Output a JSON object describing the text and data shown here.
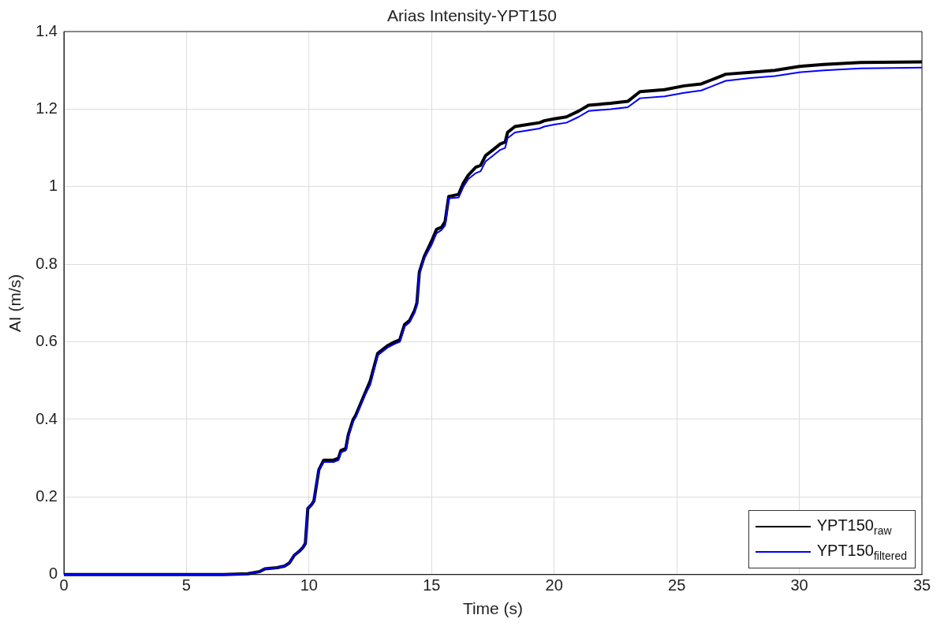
{
  "chart_data": {
    "type": "line",
    "title": "Arias Intensity-YPT150",
    "xlabel": "Time (s)",
    "ylabel": "AI (m/s)",
    "xlim": [
      0,
      35
    ],
    "xticks": [
      0,
      5,
      10,
      15,
      20,
      25,
      30,
      35
    ],
    "ylim": [
      0,
      1.4
    ],
    "yticks": [
      0,
      0.2,
      0.4,
      0.6,
      0.8,
      1,
      1.2,
      1.4
    ],
    "grid": true,
    "legend": "bottom right",
    "marker": "none",
    "line_style": "solid",
    "series": [
      {
        "name": "YPT150$_{raw}$",
        "color": "#000000",
        "x": [
          0,
          6.5,
          7.5,
          8,
          8.2,
          8.7,
          9,
          9.2,
          9.4,
          9.6,
          9.75,
          9.85,
          9.95,
          10.1,
          10.2,
          10.4,
          10.6,
          11,
          11.2,
          11.3,
          11.5,
          11.6,
          11.8,
          11.9,
          12.1,
          12.3,
          12.5,
          12.8,
          13,
          13.2,
          13.5,
          13.7,
          13.9,
          14.1,
          14.3,
          14.4,
          14.5,
          14.7,
          15,
          15.2,
          15.4,
          15.55,
          15.7,
          16.1,
          16.3,
          16.5,
          16.8,
          17,
          17.2,
          17.5,
          17.8,
          18,
          18.1,
          18.4,
          18.9,
          19.4,
          19.6,
          20,
          20.5,
          21,
          21.4,
          22.3,
          23,
          23.5,
          24.5,
          25.3,
          26,
          26.4,
          26.6,
          27,
          28,
          29,
          30,
          31,
          32.5,
          35
        ],
        "values": [
          0,
          0,
          0.002,
          0.008,
          0.015,
          0.018,
          0.022,
          0.03,
          0.05,
          0.06,
          0.07,
          0.08,
          0.17,
          0.18,
          0.19,
          0.27,
          0.295,
          0.295,
          0.3,
          0.32,
          0.325,
          0.36,
          0.4,
          0.41,
          0.44,
          0.47,
          0.5,
          0.57,
          0.58,
          0.59,
          0.6,
          0.605,
          0.645,
          0.655,
          0.68,
          0.7,
          0.78,
          0.82,
          0.86,
          0.89,
          0.895,
          0.91,
          0.975,
          0.98,
          1.01,
          1.03,
          1.05,
          1.055,
          1.08,
          1.095,
          1.11,
          1.115,
          1.14,
          1.155,
          1.16,
          1.165,
          1.17,
          1.175,
          1.18,
          1.195,
          1.21,
          1.215,
          1.22,
          1.245,
          1.25,
          1.26,
          1.265,
          1.275,
          1.28,
          1.29,
          1.295,
          1.3,
          1.31,
          1.315,
          1.32,
          1.322
        ]
      },
      {
        "name": "YPT150$_{filtered}$",
        "color": "#0000ff",
        "x": [
          0,
          6.5,
          7.5,
          8,
          8.2,
          8.7,
          9,
          9.2,
          9.4,
          9.6,
          9.75,
          9.85,
          9.95,
          10.1,
          10.2,
          10.4,
          10.6,
          11,
          11.2,
          11.3,
          11.5,
          11.6,
          11.8,
          11.9,
          12.1,
          12.3,
          12.5,
          12.8,
          13.2,
          13.5,
          13.7,
          13.9,
          14.1,
          14.3,
          14.4,
          14.5,
          14.7,
          15,
          15.2,
          15.4,
          15.55,
          15.7,
          16.1,
          16.3,
          16.5,
          16.8,
          17,
          17.2,
          17.5,
          17.8,
          18,
          18.1,
          18.4,
          18.9,
          19.4,
          19.6,
          20,
          20.5,
          21,
          21.4,
          22.3,
          23,
          23.5,
          24.5,
          25.3,
          26,
          26.4,
          26.6,
          27,
          28,
          29,
          30,
          31,
          32.5,
          35
        ],
        "values": [
          0,
          0,
          0.002,
          0.008,
          0.015,
          0.018,
          0.022,
          0.03,
          0.05,
          0.06,
          0.07,
          0.08,
          0.17,
          0.18,
          0.19,
          0.27,
          0.29,
          0.29,
          0.295,
          0.315,
          0.32,
          0.355,
          0.395,
          0.405,
          0.435,
          0.465,
          0.49,
          0.565,
          0.585,
          0.595,
          0.6,
          0.64,
          0.65,
          0.675,
          0.695,
          0.775,
          0.815,
          0.85,
          0.88,
          0.888,
          0.9,
          0.97,
          0.972,
          1,
          1.02,
          1.035,
          1.04,
          1.065,
          1.08,
          1.095,
          1.1,
          1.125,
          1.14,
          1.145,
          1.15,
          1.155,
          1.16,
          1.165,
          1.18,
          1.195,
          1.2,
          1.205,
          1.228,
          1.233,
          1.242,
          1.248,
          1.258,
          1.263,
          1.273,
          1.28,
          1.285,
          1.295,
          1.3,
          1.305,
          1.307
        ]
      }
    ]
  }
}
